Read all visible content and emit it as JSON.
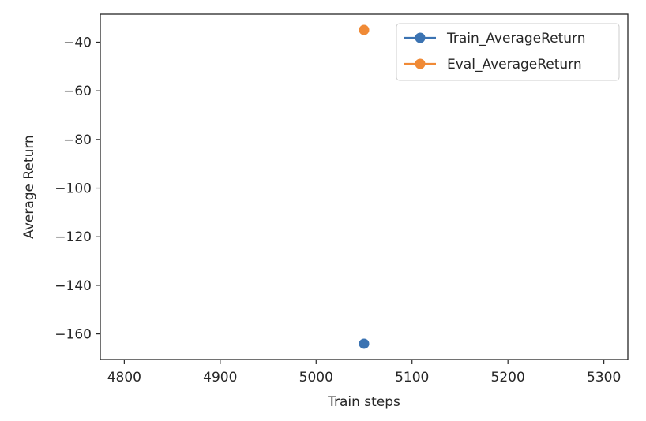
{
  "chart_data": {
    "type": "scatter",
    "xlabel": "Train steps",
    "ylabel": "Average Return",
    "xlim": [
      4775,
      5325
    ],
    "ylim": [
      -170.5,
      -28.5
    ],
    "x_ticks": [
      4800,
      4900,
      5000,
      5100,
      5200,
      5300
    ],
    "y_ticks": [
      -40,
      -60,
      -80,
      -100,
      -120,
      -140,
      -160
    ],
    "x_tick_labels": [
      "4800",
      "4900",
      "5000",
      "5100",
      "5200",
      "5300"
    ],
    "y_tick_labels": [
      "−40",
      "−60",
      "−80",
      "−100",
      "−120",
      "−140",
      "−160"
    ],
    "grid": false,
    "legend_position": "top-right",
    "series": [
      {
        "name": "Train_AverageReturn",
        "color": "#3b73b2",
        "marker": "circle",
        "x": [
          5050
        ],
        "y": [
          -164
        ]
      },
      {
        "name": "Eval_AverageReturn",
        "color": "#f08a36",
        "marker": "circle",
        "x": [
          5050
        ],
        "y": [
          -35
        ]
      }
    ]
  }
}
